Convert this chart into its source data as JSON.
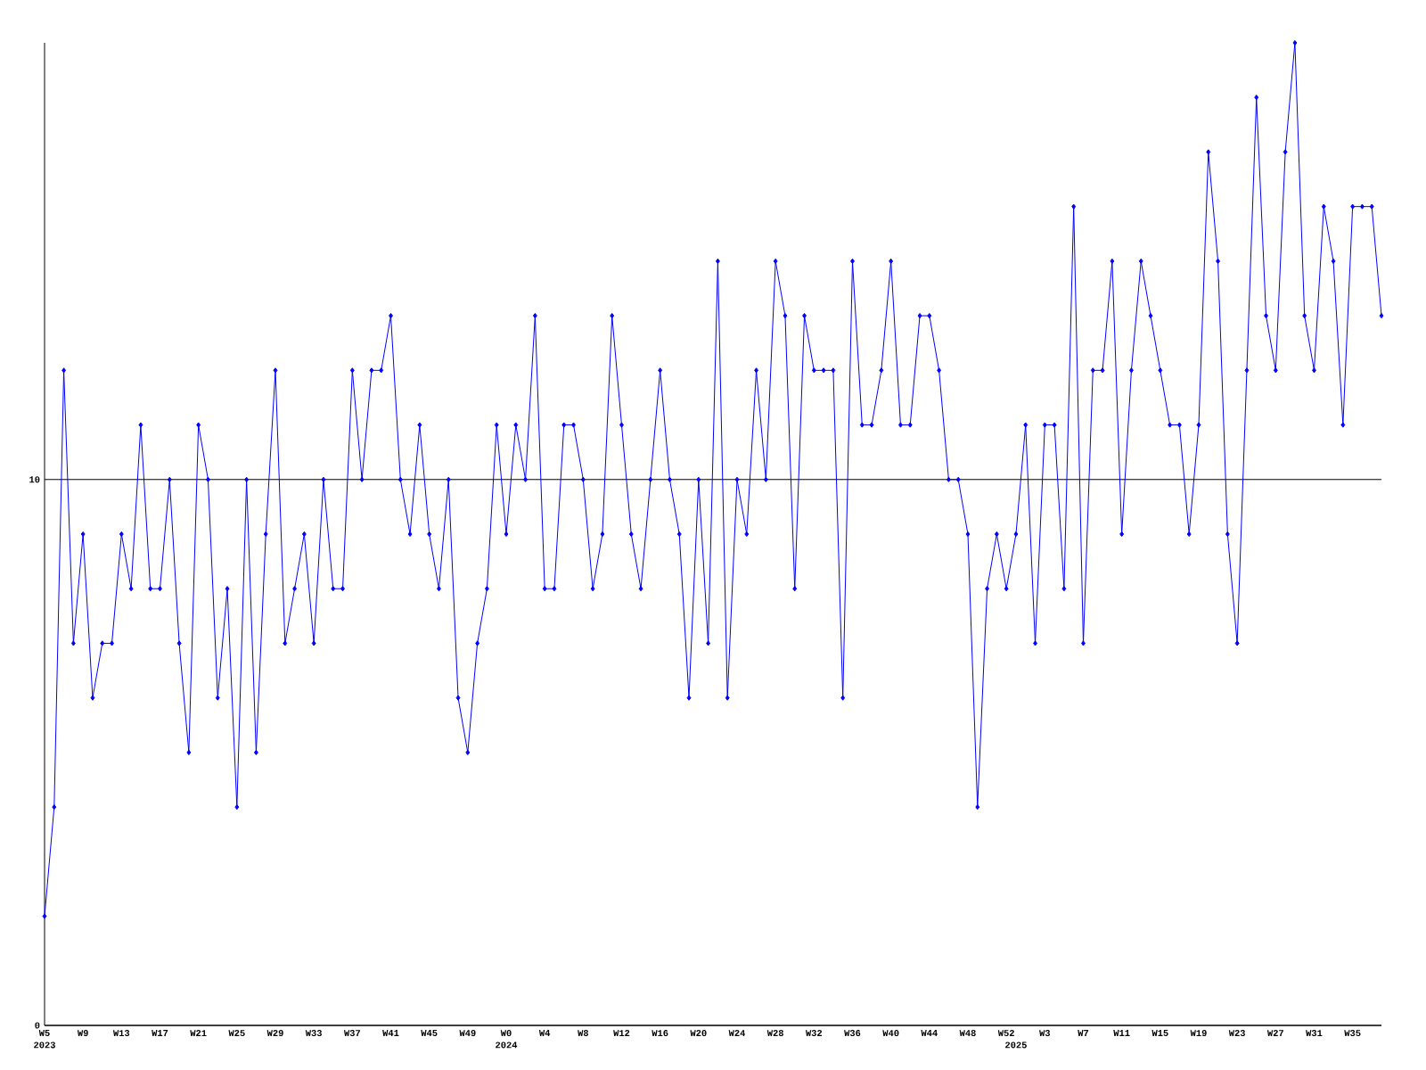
{
  "chart_data": {
    "type": "line",
    "categories": [
      "W5",
      null,
      null,
      null,
      "W9",
      null,
      null,
      null,
      "W13",
      null,
      null,
      null,
      "W17",
      null,
      null,
      null,
      "W21",
      null,
      null,
      null,
      "W25",
      null,
      null,
      null,
      "W29",
      null,
      null,
      null,
      "W33",
      null,
      null,
      null,
      "W37",
      null,
      null,
      null,
      "W41",
      null,
      null,
      null,
      "W45",
      null,
      null,
      null,
      "W49",
      null,
      null,
      null,
      "W0",
      null,
      null,
      null,
      "W4",
      null,
      null,
      null,
      "W8",
      null,
      null,
      null,
      "W12",
      null,
      null,
      null,
      "W16",
      null,
      null,
      null,
      "W20",
      null,
      null,
      null,
      "W24",
      null,
      null,
      null,
      "W28",
      null,
      null,
      null,
      "W32",
      null,
      null,
      null,
      "W36",
      null,
      null,
      null,
      "W40",
      null,
      null,
      null,
      "W44",
      null,
      null,
      null,
      "W48",
      null,
      null,
      null,
      "W52",
      null,
      null,
      null,
      "W3",
      null,
      null,
      null,
      "W7",
      null,
      null,
      null,
      "W11",
      null,
      null,
      null,
      "W15",
      null,
      null,
      null,
      "W19",
      null,
      null,
      null,
      "W23",
      null,
      null,
      null,
      "W27",
      null,
      null,
      null,
      "W31",
      null,
      null,
      null,
      "W35",
      null,
      null,
      null
    ],
    "values": [
      2,
      4,
      12,
      7,
      9,
      6,
      7,
      7,
      9,
      8,
      11,
      8,
      8,
      10,
      7,
      5,
      11,
      10,
      6,
      8,
      4,
      10,
      5,
      9,
      12,
      7,
      8,
      9,
      7,
      10,
      8,
      8,
      12,
      10,
      12,
      12,
      13,
      10,
      9,
      11,
      9,
      8,
      10,
      6,
      5,
      7,
      8,
      11,
      9,
      11,
      10,
      13,
      8,
      8,
      11,
      11,
      10,
      8,
      9,
      13,
      11,
      9,
      8,
      10,
      12,
      10,
      9,
      6,
      10,
      7,
      14,
      6,
      10,
      9,
      12,
      10,
      14,
      13,
      8,
      13,
      12,
      12,
      12,
      6,
      14,
      11,
      11,
      12,
      14,
      11,
      11,
      13,
      13,
      12,
      10,
      10,
      9,
      4,
      8,
      9,
      8,
      9,
      11,
      7,
      11,
      11,
      8,
      15,
      7,
      12,
      12,
      14,
      9,
      12,
      14,
      13,
      12,
      11,
      11,
      9,
      11,
      16,
      14,
      9,
      7,
      12,
      17,
      13,
      12,
      16,
      18,
      13,
      12,
      15,
      14,
      11,
      15,
      15,
      15,
      13
    ],
    "color": "#0000ff",
    "marker": "diamond",
    "ylim": [
      0,
      18
    ],
    "yticks": [
      0,
      10
    ],
    "grid": "y",
    "annotations": [
      "2023",
      "2024",
      "2025"
    ]
  }
}
